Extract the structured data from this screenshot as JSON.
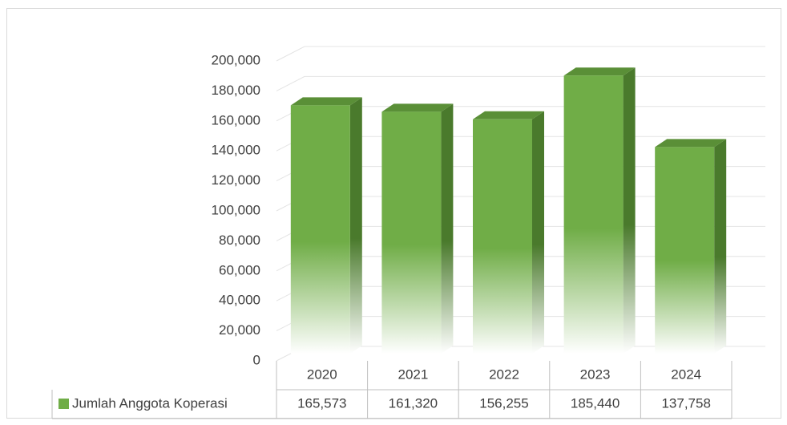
{
  "chart_data": {
    "type": "bar",
    "categories": [
      "2020",
      "2021",
      "2022",
      "2023",
      "2024"
    ],
    "series": [
      {
        "name": "Jumlah Anggota Koperasi",
        "color": "#70ad47",
        "values": [
          165573,
          161320,
          156255,
          185440,
          137758
        ],
        "value_labels": [
          "165,573",
          "161,320",
          "156,255",
          "185,440",
          "137,758"
        ]
      }
    ],
    "ylim": [
      0,
      200000
    ],
    "yticks": [
      0,
      {
        "value": 20000,
        "label": "20,000"
      },
      {
        "value": 40000,
        "label": "40,000"
      },
      {
        "value": 60000,
        "label": "60,000"
      },
      {
        "value": 80000,
        "label": "80,000"
      },
      {
        "value": 100000,
        "label": "100,000"
      },
      {
        "value": 120000,
        "label": "120,000"
      },
      {
        "value": 140000,
        "label": "140,000"
      },
      {
        "value": 160000,
        "label": "160,000"
      },
      {
        "value": 180000,
        "label": "180,000"
      },
      {
        "value": 200000,
        "label": "200,000"
      }
    ],
    "grid": true
  }
}
